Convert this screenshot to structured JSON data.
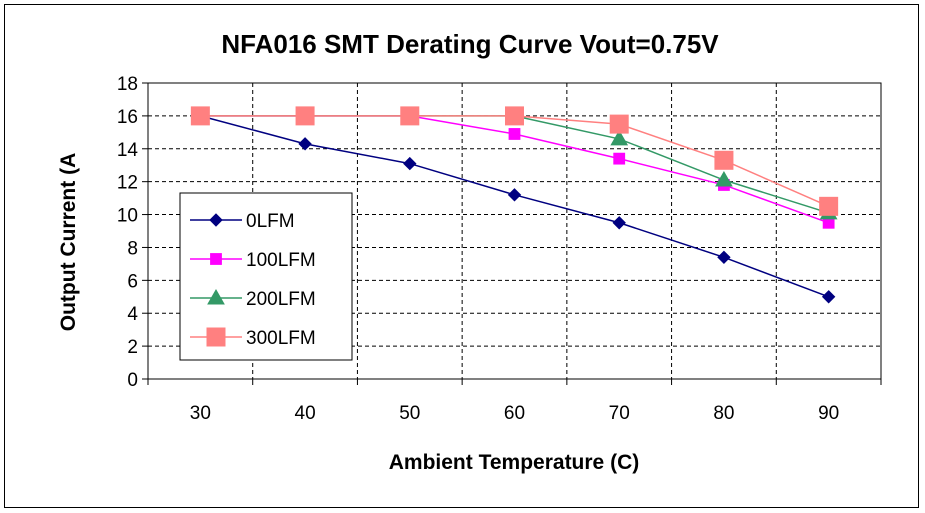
{
  "chart_data": {
    "type": "line",
    "title": "NFA016 SMT Derating Curve Vout=0.75V",
    "xlabel": "Ambient Temperature (C)",
    "ylabel": "Output Current (A",
    "x": [
      30,
      40,
      50,
      60,
      70,
      80,
      90
    ],
    "xlim": [
      25,
      95
    ],
    "ylim": [
      0,
      18
    ],
    "yticks": [
      0,
      2,
      4,
      6,
      8,
      10,
      12,
      14,
      16,
      18
    ],
    "grid": true,
    "legend_position": "left",
    "series": [
      {
        "name": "0LFM",
        "color": "#000080",
        "marker": "diamond",
        "values": [
          16,
          14.3,
          13.1,
          11.2,
          9.5,
          7.4,
          5.0
        ]
      },
      {
        "name": "100LFM",
        "color": "#FF00FF",
        "marker": "square",
        "values": [
          16,
          16,
          16,
          14.9,
          13.4,
          11.8,
          9.5
        ]
      },
      {
        "name": "200LFM",
        "color": "#339966",
        "marker": "triangle",
        "values": [
          16,
          16,
          16,
          16,
          14.6,
          12.1,
          10.1
        ]
      },
      {
        "name": "300LFM",
        "color": "#FF8080",
        "marker": "square",
        "values": [
          16,
          16,
          16,
          16,
          15.5,
          13.3,
          10.5
        ]
      }
    ]
  }
}
